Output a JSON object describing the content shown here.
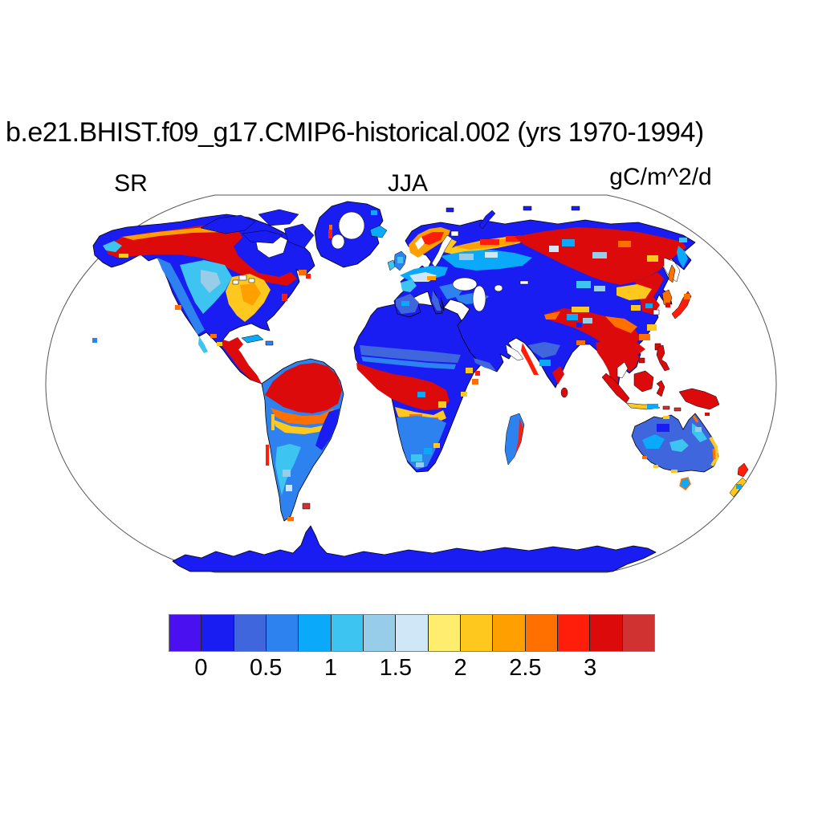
{
  "title": "b.e21.BHIST.f09_g17.CMIP6-historical.002 (yrs 1970-1994)",
  "labels": {
    "variable": "SR",
    "season": "JJA",
    "units": "gC/m^2/d"
  },
  "colorbar": {
    "segments": 15,
    "colors": [
      "#4a10f0",
      "#1a1df2",
      "#3f66dd",
      "#2e82f0",
      "#0aa9fa",
      "#3ec4f0",
      "#97cde8",
      "#cfe7f7",
      "#ffee6e",
      "#ffc81e",
      "#ffa000",
      "#ff7000",
      "#ff1e0a",
      "#dc0a0a",
      "#d03232"
    ],
    "ticks": [
      {
        "label": "0",
        "boundary": 1
      },
      {
        "label": "0.5",
        "boundary": 3
      },
      {
        "label": "1",
        "boundary": 5
      },
      {
        "label": "1.5",
        "boundary": 7
      },
      {
        "label": "2",
        "boundary": 9
      },
      {
        "label": "2.5",
        "boundary": 11
      },
      {
        "label": "3",
        "boundary": 13
      }
    ]
  },
  "palette": {
    "violet": "#4a10f0",
    "blue": "#1a1df2",
    "royal": "#3f66dd",
    "medblue": "#2e82f0",
    "azure": "#0aa9fa",
    "cyan": "#3ec4f0",
    "lightblue": "#97cde8",
    "pale": "#cfe7f7",
    "yellow": "#ffee6e",
    "gold": "#ffc81e",
    "orange": "#ffa000",
    "dorange": "#ff7000",
    "redor": "#ff1e0a",
    "red": "#dc0a0a",
    "brick": "#d03232"
  },
  "chart_data": {
    "type": "heatmap",
    "title": "b.e21.BHIST.f09_g17.CMIP6-historical.002 (yrs 1970-1994)",
    "variable": "SR",
    "season": "JJA",
    "units": "gC/m^2/d",
    "projection": "Robinson world map, land-only raster, ocean white",
    "level_boundaries": [
      -0.25,
      0,
      0.25,
      0.5,
      0.75,
      1,
      1.25,
      1.5,
      1.75,
      2,
      2.25,
      2.5,
      2.75,
      3,
      3.25,
      3.5
    ],
    "tick_labels": [
      "0",
      "0.5",
      "1",
      "1.5",
      "2",
      "2.5",
      "3"
    ],
    "colorbar_colors": [
      "#4a10f0",
      "#1a1df2",
      "#3f66dd",
      "#2e82f0",
      "#0aa9fa",
      "#3ec4f0",
      "#97cde8",
      "#cfe7f7",
      "#ffee6e",
      "#ffc81e",
      "#ffa000",
      "#ff7000",
      "#ff1e0a",
      "#dc0a0a",
      "#d03232"
    ],
    "region_values_approx": [
      {
        "region": "Antarctica",
        "value": 0.1
      },
      {
        "region": "Greenland (ice-free fringe)",
        "value": 0.1
      },
      {
        "region": "Sahara / Arabia",
        "value": 0.1
      },
      {
        "region": "Northern Canada tundra",
        "value": 0.2
      },
      {
        "region": "Boreal Canada / Alaska interior",
        "value": 3.2
      },
      {
        "region": "Scandinavia / western Russia band",
        "value": 2.5
      },
      {
        "region": "Eastern Siberia",
        "value": 3.2
      },
      {
        "region": "Central Asia steppe",
        "value": 1.2
      },
      {
        "region": "Western / central US",
        "value": 0.9
      },
      {
        "region": "Eastern US",
        "value": 2.2
      },
      {
        "region": "Amazon basin",
        "value": 3.3
      },
      {
        "region": "Congo basin",
        "value": 3.3
      },
      {
        "region": "Southern Africa",
        "value": 0.7
      },
      {
        "region": "India",
        "value": 0.6
      },
      {
        "region": "Tibet / SW China",
        "value": 3.1
      },
      {
        "region": "Southeast Asia / Indonesia / New Guinea",
        "value": 3.3
      },
      {
        "region": "Australia interior",
        "value": 0.5
      },
      {
        "region": "Australia east coast",
        "value": 2.3
      }
    ]
  }
}
